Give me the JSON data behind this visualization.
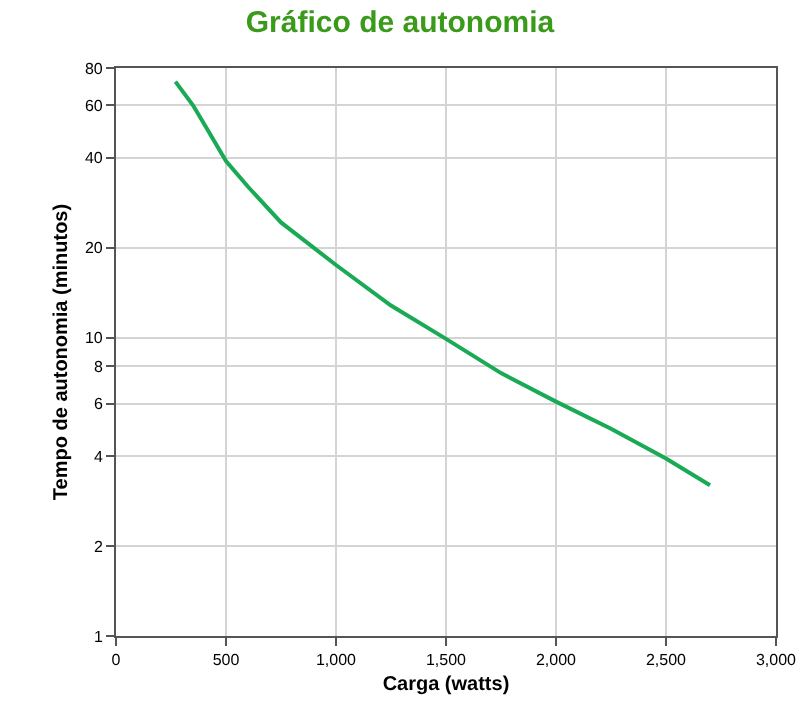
{
  "chart_data": {
    "type": "line",
    "title": "Gráfico de autonomia",
    "xlabel": "Carga (watts)",
    "ylabel": "Tempo de autonomia (minutos)",
    "series": [
      {
        "color": "#1aaa55",
        "x": [
          270,
          350,
          400,
          500,
          600,
          750,
          1000,
          1250,
          1500,
          1750,
          2000,
          2250,
          2500,
          2700
        ],
        "values": [
          72,
          60,
          52,
          39,
          32,
          24.3,
          17.5,
          12.8,
          9.9,
          7.6,
          6.1,
          4.95,
          3.93,
          3.2
        ]
      }
    ],
    "xlim": [
      0,
      3000
    ],
    "xticks": [
      0,
      {
        "value": 500,
        "label": "500"
      },
      {
        "value": 1000,
        "label": "1,000"
      },
      {
        "value": 1500,
        "label": "1,500"
      },
      {
        "value": 2000,
        "label": "2,000"
      },
      {
        "value": 2500,
        "label": "2,500"
      },
      {
        "value": 3000,
        "label": "3,000"
      }
    ],
    "ylim": [
      1,
      80
    ],
    "yticks": [
      1,
      2,
      4,
      6,
      8,
      10,
      20,
      40,
      60,
      80
    ],
    "log": "y",
    "grid": true,
    "marker": "none",
    "line_style": "solid",
    "legend": false
  }
}
